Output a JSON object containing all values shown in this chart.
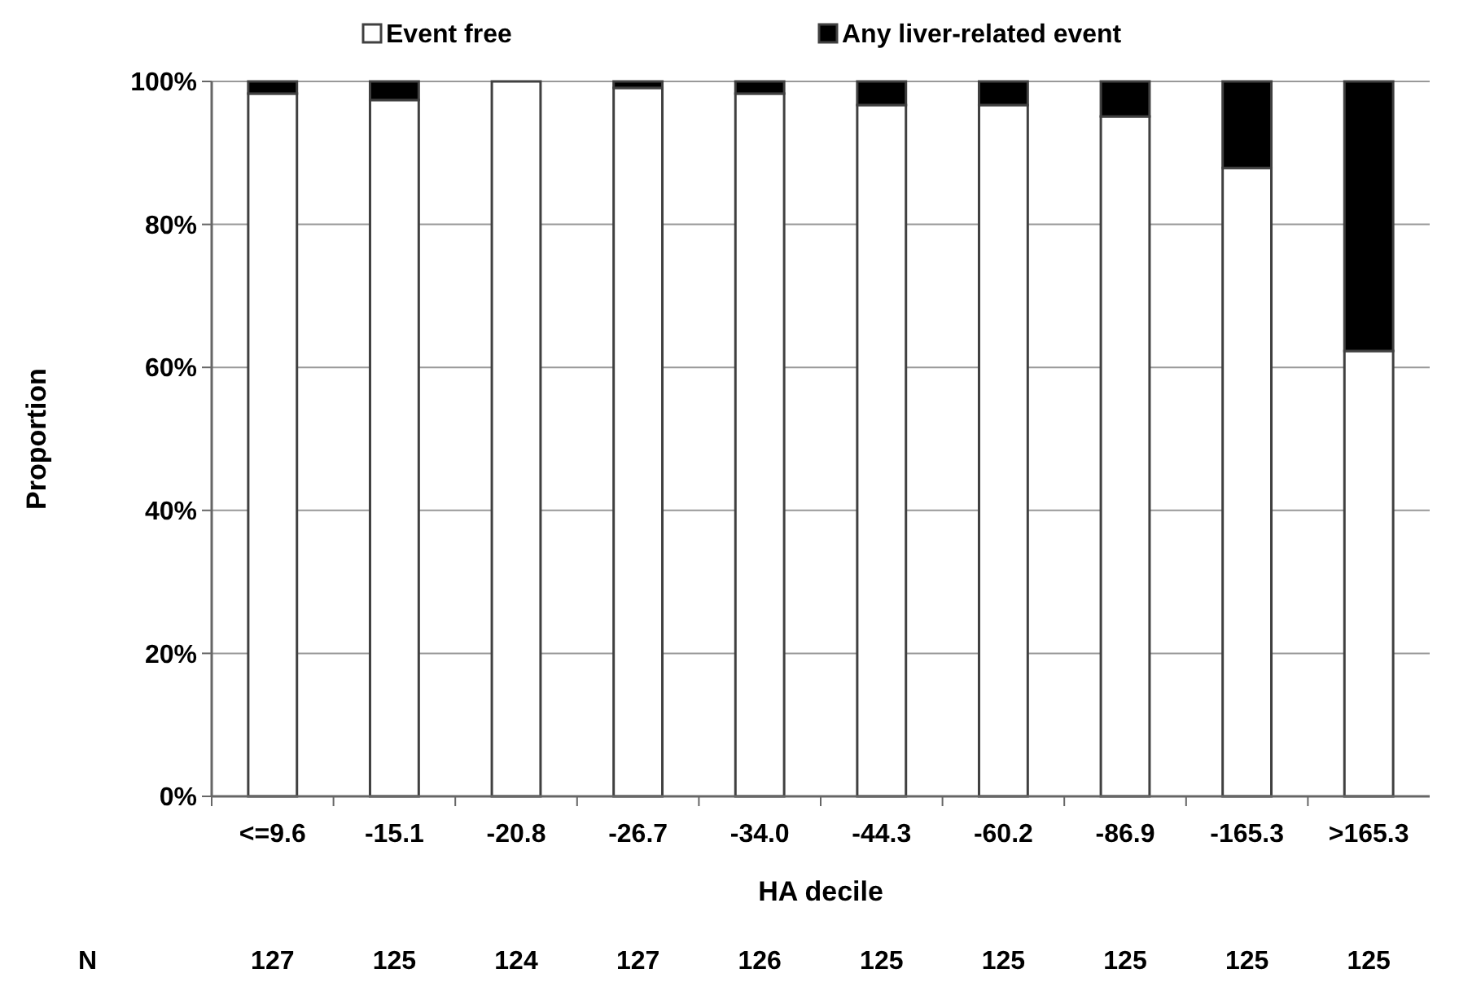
{
  "chart_data": {
    "type": "bar",
    "stacked": true,
    "xlabel": "HA decile",
    "ylabel": "Proportion",
    "categories": [
      "<=9.6",
      "-15.1",
      "-20.8",
      "-26.7",
      "-34.0",
      "-44.3",
      "-60.2",
      "-86.9",
      "-165.3",
      ">165.3"
    ],
    "series": [
      {
        "name": "Event free",
        "color": "#ffffff",
        "values": [
          98.3,
          97.4,
          100,
          99.1,
          98.3,
          96.7,
          96.7,
          95.1,
          87.9,
          62.3
        ]
      },
      {
        "name": "Any liver-related event",
        "color": "#000000",
        "values": [
          1.7,
          2.6,
          0,
          0.9,
          1.7,
          3.3,
          3.3,
          4.9,
          12.1,
          37.7
        ]
      }
    ],
    "ylim": [
      0,
      100
    ],
    "yticks": [
      {
        "value": 0,
        "label": "0%"
      },
      {
        "value": 20,
        "label": "20%"
      },
      {
        "value": 40,
        "label": "40%"
      },
      {
        "value": 60,
        "label": "60%"
      },
      {
        "value": 80,
        "label": "80%"
      },
      {
        "value": 100,
        "label": "100%"
      }
    ],
    "grid": "y",
    "legend": "top",
    "annotations": [
      "N",
      "127",
      "125",
      "124",
      "127",
      "126",
      "125",
      "125",
      "125",
      "125",
      "125"
    ]
  }
}
